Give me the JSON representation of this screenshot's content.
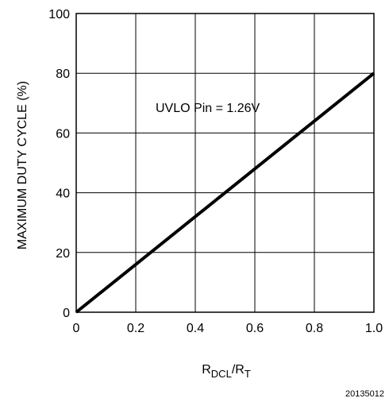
{
  "chart_data": {
    "type": "line",
    "xlabel": {
      "main": "R",
      "sub1": "DCL",
      "mid": "/R",
      "sub2": "T"
    },
    "ylabel": "MAXIMUM DUTY CYCLE (%)",
    "xlim": [
      0,
      1.0
    ],
    "ylim": [
      0,
      100
    ],
    "xticks": [
      0,
      0.2,
      0.4,
      0.6,
      0.8,
      1.0
    ],
    "xtick_labels": [
      "0",
      "0.2",
      "0.4",
      "0.6",
      "0.8",
      "1.0"
    ],
    "yticks": [
      0,
      20,
      40,
      60,
      80,
      100
    ],
    "ytick_labels": [
      "0",
      "20",
      "40",
      "60",
      "80",
      "100"
    ],
    "grid": true,
    "series": [
      {
        "x": [
          0,
          1.0
        ],
        "y": [
          0,
          80
        ]
      }
    ],
    "annotation": "UVLO Pin = 1.26V",
    "figure_id": "20135012"
  }
}
